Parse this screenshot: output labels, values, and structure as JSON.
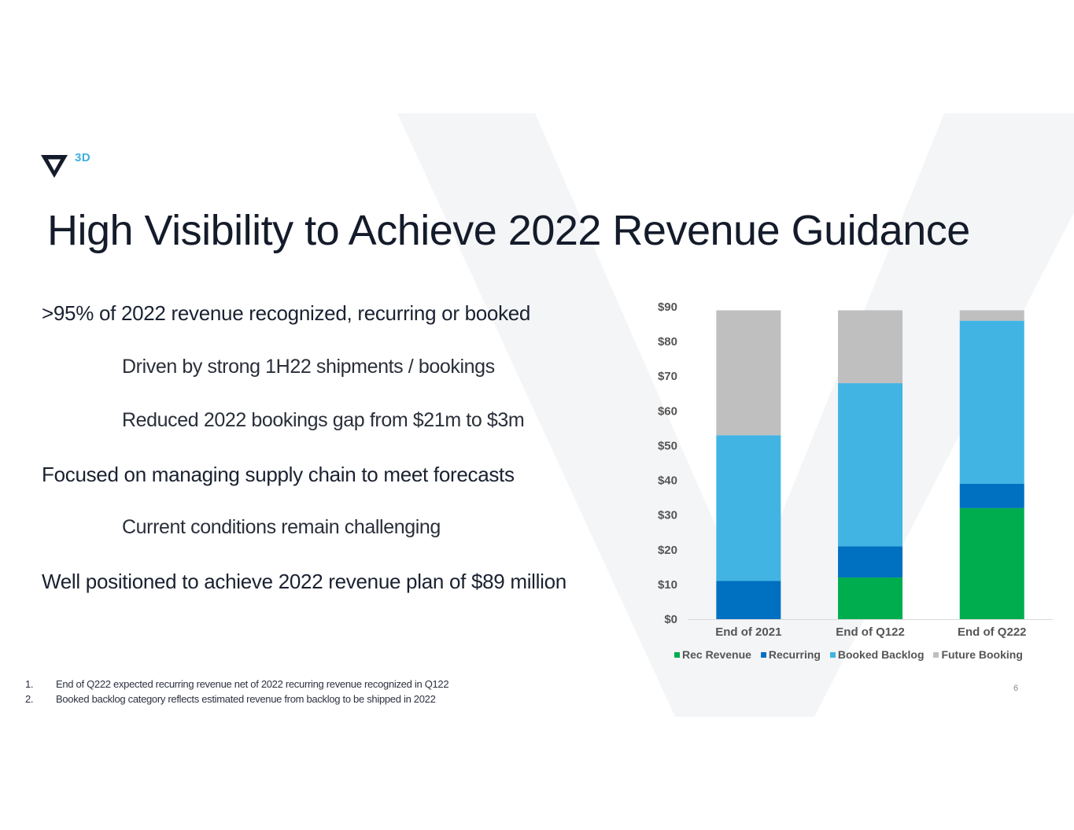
{
  "logo": {
    "text": "3D",
    "mark": "v-triangle-logo"
  },
  "title": "High Visibility to Achieve 2022 Revenue Guidance",
  "bullets": [
    {
      "level": 1,
      "text": ">95% of 2022 revenue recognized, recurring or booked"
    },
    {
      "level": 2,
      "text": "Driven by strong 1H22 shipments / bookings"
    },
    {
      "level": 2,
      "text": "Reduced 2022 bookings gap from $21m to $3m"
    },
    {
      "level": 1,
      "text": "Focused on managing supply chain to meet forecasts"
    },
    {
      "level": 2,
      "text": "Current conditions remain challenging"
    },
    {
      "level": 1,
      "text": "Well positioned to achieve 2022 revenue plan of $89 million"
    }
  ],
  "footnotes": [
    {
      "num": "1.",
      "text": "End of Q222 expected recurring revenue net of 2022 recurring revenue recognized in Q122"
    },
    {
      "num": "2.",
      "text": "Booked backlog category reflects estimated revenue from backlog to be shipped in 2022"
    }
  ],
  "page_number": "6",
  "colors": {
    "rec_revenue": "#00ad4e",
    "recurring": "#0070c0",
    "booked_backlog": "#41b4e4",
    "future_booking": "#bfbfbf",
    "title": "#141b2a",
    "accent": "#3fb0df"
  },
  "chart_data": {
    "type": "bar",
    "stacked": true,
    "title": "",
    "xlabel": "",
    "ylabel": "",
    "categories": [
      "End of 2021",
      "End of Q122",
      "End of Q222"
    ],
    "series": [
      {
        "name": "Rec Revenue",
        "color": "#00ad4e",
        "values": [
          0,
          12,
          32
        ]
      },
      {
        "name": "Recurring",
        "color": "#0070c0",
        "values": [
          11,
          9,
          7
        ]
      },
      {
        "name": "Booked Backlog",
        "color": "#41b4e4",
        "values": [
          42,
          47,
          47
        ]
      },
      {
        "name": "Future Booking",
        "color": "#bfbfbf",
        "values": [
          36,
          21,
          3
        ]
      }
    ],
    "ylim": [
      0,
      90
    ],
    "yticks": [
      0,
      10,
      20,
      30,
      40,
      50,
      60,
      70,
      80,
      90
    ],
    "ytick_labels": [
      "$0",
      "$10",
      "$20",
      "$30",
      "$40",
      "$50",
      "$60",
      "$70",
      "$80",
      "$90"
    ],
    "grid": false,
    "legend": "bottom"
  }
}
